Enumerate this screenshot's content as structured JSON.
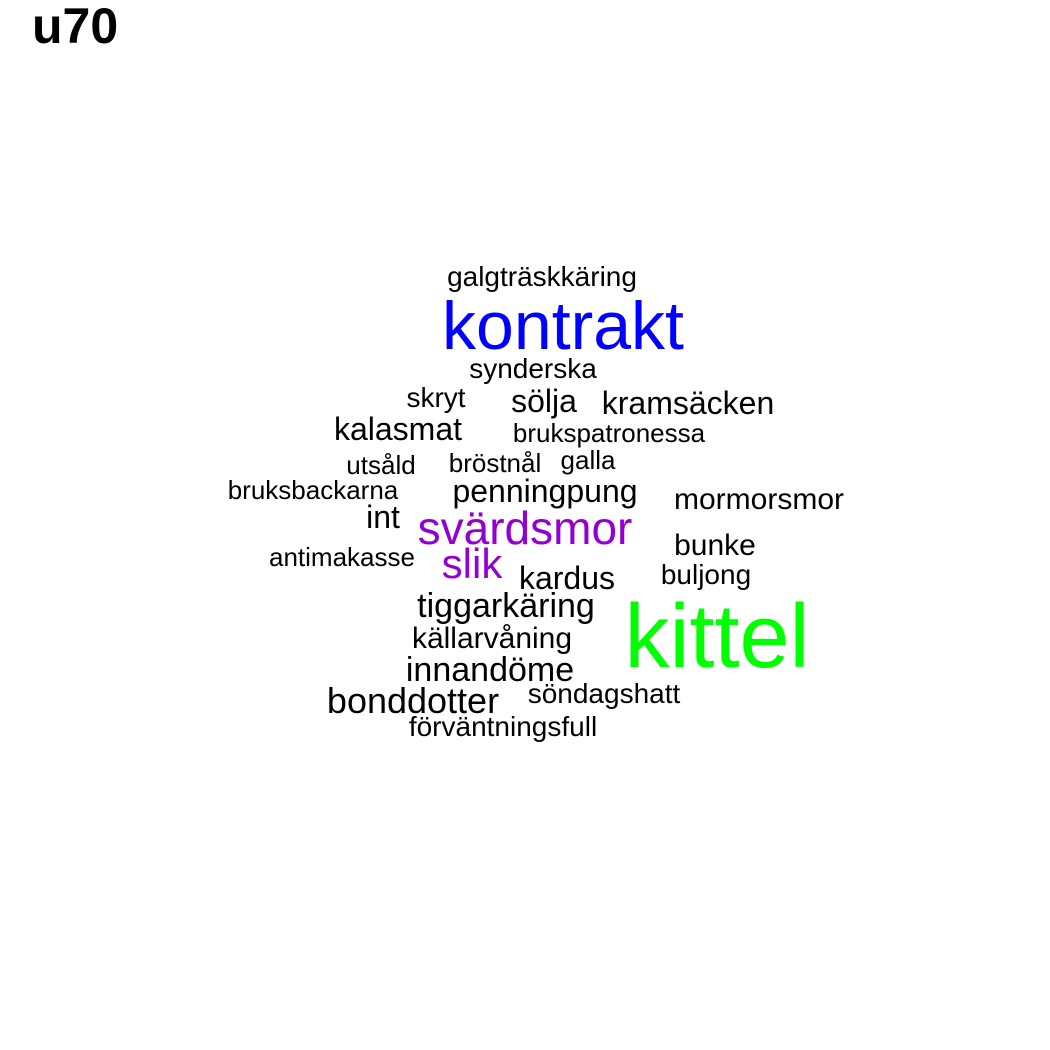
{
  "title": "u70",
  "colors": {
    "default": "#000000",
    "kontrakt": "#0000ff",
    "kittel": "#00ff00",
    "svardsmor": "#9400d3",
    "slik": "#9400d3"
  },
  "words": [
    {
      "text": "galgträskkäring",
      "weight": 1,
      "color": "#000000"
    },
    {
      "text": "kontrakt",
      "weight": 4,
      "color": "#0000ff"
    },
    {
      "text": "synderska",
      "weight": 1,
      "color": "#000000"
    },
    {
      "text": "skryt",
      "weight": 1,
      "color": "#000000"
    },
    {
      "text": "sölja",
      "weight": 1,
      "color": "#000000"
    },
    {
      "text": "kramsäcken",
      "weight": 1,
      "color": "#000000"
    },
    {
      "text": "kalasmat",
      "weight": 1,
      "color": "#000000"
    },
    {
      "text": "brukspatronessa",
      "weight": 1,
      "color": "#000000"
    },
    {
      "text": "utsåld",
      "weight": 1,
      "color": "#000000"
    },
    {
      "text": "bröstnål",
      "weight": 1,
      "color": "#000000"
    },
    {
      "text": "galla",
      "weight": 1,
      "color": "#000000"
    },
    {
      "text": "bruksbackarna",
      "weight": 1,
      "color": "#000000"
    },
    {
      "text": "penningpung",
      "weight": 1,
      "color": "#000000"
    },
    {
      "text": "mormorsmor",
      "weight": 1,
      "color": "#000000"
    },
    {
      "text": "int",
      "weight": 1,
      "color": "#000000"
    },
    {
      "text": "svärdsmor",
      "weight": 2,
      "color": "#9400d3"
    },
    {
      "text": "bunke",
      "weight": 1,
      "color": "#000000"
    },
    {
      "text": "antimakasse",
      "weight": 1,
      "color": "#000000"
    },
    {
      "text": "slik",
      "weight": 2,
      "color": "#9400d3"
    },
    {
      "text": "kardus",
      "weight": 1,
      "color": "#000000"
    },
    {
      "text": "buljong",
      "weight": 1,
      "color": "#000000"
    },
    {
      "text": "tiggarkäring",
      "weight": 1,
      "color": "#000000"
    },
    {
      "text": "kittel",
      "weight": 5,
      "color": "#00ff00"
    },
    {
      "text": "källarvåning",
      "weight": 1,
      "color": "#000000"
    },
    {
      "text": "innandöme",
      "weight": 1,
      "color": "#000000"
    },
    {
      "text": "bonddotter",
      "weight": 1,
      "color": "#000000"
    },
    {
      "text": "söndagshatt",
      "weight": 1,
      "color": "#000000"
    },
    {
      "text": "förväntningsfull",
      "weight": 1,
      "color": "#000000"
    }
  ]
}
